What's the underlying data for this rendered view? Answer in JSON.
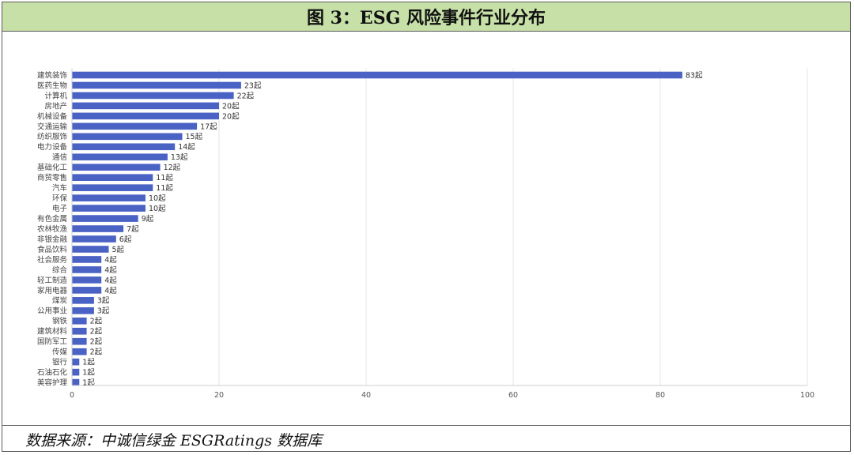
{
  "header": {
    "title": "图 3：ESG 风险事件行业分布"
  },
  "footer": {
    "source": "数据来源：中诚信绿金 ESGRatings 数据库"
  },
  "chart_data": {
    "type": "bar",
    "orientation": "horizontal",
    "title": "",
    "xlabel": "",
    "ylabel": "",
    "xlim": [
      0,
      100
    ],
    "x_ticks": [
      0,
      20,
      40,
      60,
      80,
      100
    ],
    "grid": true,
    "value_suffix": "起",
    "bar_color": "#4a62c4",
    "categories": [
      "建筑装饰",
      "医药生物",
      "计算机",
      "房地产",
      "机械设备",
      "交通运输",
      "纺织服饰",
      "电力设备",
      "通信",
      "基础化工",
      "商贸零售",
      "汽车",
      "环保",
      "电子",
      "有色金属",
      "农林牧渔",
      "非银金融",
      "食品饮料",
      "社会服务",
      "综合",
      "轻工制造",
      "家用电器",
      "煤炭",
      "公用事业",
      "钢铁",
      "建筑材料",
      "国防军工",
      "传媒",
      "银行",
      "石油石化",
      "美容护理"
    ],
    "values": [
      83,
      23,
      22,
      20,
      20,
      17,
      15,
      14,
      13,
      12,
      11,
      11,
      10,
      10,
      9,
      7,
      6,
      5,
      4,
      4,
      4,
      4,
      3,
      3,
      2,
      2,
      2,
      2,
      1,
      1,
      1
    ]
  }
}
